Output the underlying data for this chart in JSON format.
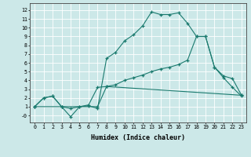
{
  "bg_color": "#cce8e8",
  "grid_color": "#ffffff",
  "line_color": "#1a7a6e",
  "xlabel": "Humidex (Indice chaleur)",
  "xlim": [
    -0.5,
    23.5
  ],
  "ylim": [
    -0.8,
    12.8
  ],
  "xticks": [
    0,
    1,
    2,
    3,
    4,
    5,
    6,
    7,
    8,
    9,
    10,
    11,
    12,
    13,
    14,
    15,
    16,
    17,
    18,
    19,
    20,
    21,
    22,
    23
  ],
  "yticks": [
    0,
    1,
    2,
    3,
    4,
    5,
    6,
    7,
    8,
    9,
    10,
    11,
    12
  ],
  "ytick_labels": [
    "-0",
    "1",
    "2",
    "3",
    "4",
    "5",
    "6",
    "7",
    "8",
    "9",
    "10",
    "11",
    "12"
  ],
  "line1": {
    "x": [
      0,
      1,
      2,
      3,
      4,
      5,
      6,
      7,
      8,
      9,
      10,
      11,
      12,
      13,
      14,
      15,
      16,
      17,
      18,
      19,
      20,
      21,
      22,
      23
    ],
    "y": [
      1,
      2,
      2.2,
      1,
      -0.15,
      1,
      1.1,
      0.8,
      6.5,
      7.2,
      8.5,
      9.2,
      10.2,
      11.8,
      11.5,
      11.5,
      11.7,
      10.5,
      9.0,
      9.0,
      5.5,
      4.3,
      3.2,
      2.2
    ]
  },
  "line2": {
    "x": [
      0,
      1,
      2,
      3,
      4,
      5,
      6,
      7,
      8,
      23
    ],
    "y": [
      1,
      2.0,
      2.2,
      1,
      0.8,
      1.0,
      1.2,
      3.2,
      3.3,
      2.3
    ]
  },
  "line3": {
    "x": [
      0,
      3,
      7,
      8,
      9,
      10,
      11,
      12,
      13,
      14,
      15,
      16,
      17,
      18,
      19,
      20,
      21,
      22,
      23
    ],
    "y": [
      1,
      1.0,
      1.0,
      3.3,
      3.5,
      4.0,
      4.3,
      4.6,
      5.0,
      5.3,
      5.5,
      5.8,
      6.3,
      9.0,
      9.0,
      5.5,
      4.5,
      4.2,
      2.3
    ]
  }
}
